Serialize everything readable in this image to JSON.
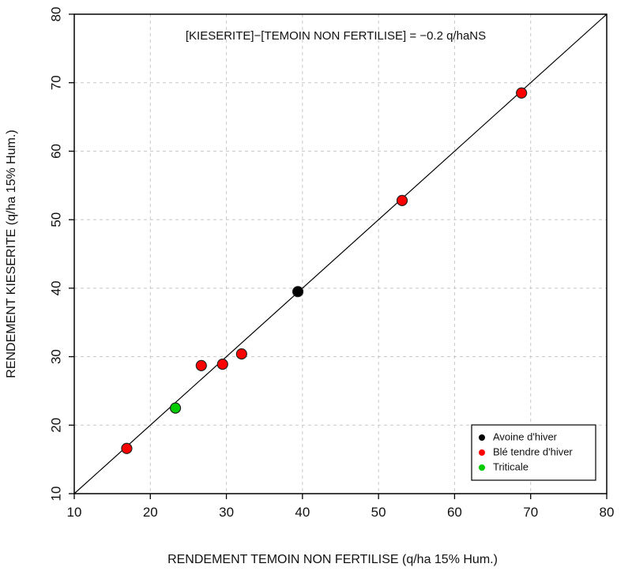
{
  "chart_data": {
    "type": "scatter",
    "title": "",
    "xlabel": "RENDEMENT TEMOIN NON FERTILISE (q/ha 15% Hum.)",
    "ylabel": "RENDEMENT KIESERITE (q/ha 15% Hum.)",
    "annotation": "[KIESERITE]−[TEMOIN NON FERTILISE] = −0.2 q/haNS",
    "xlim": [
      10,
      80
    ],
    "ylim": [
      10,
      80
    ],
    "xticks": [
      "10",
      "20",
      "30",
      "40",
      "50",
      "60",
      "70",
      "80"
    ],
    "yticks": [
      "10",
      "20",
      "30",
      "40",
      "50",
      "60",
      "70",
      "80"
    ],
    "grid": true,
    "reference_line": "y = x",
    "legend_position": "bottom-right",
    "series": [
      {
        "name": "Avoine d'hiver",
        "color": "#000000",
        "points": [
          {
            "x": 39.4,
            "y": 39.5
          }
        ]
      },
      {
        "name": "Blé tendre d'hiver",
        "color": "#ff0000",
        "points": [
          {
            "x": 16.9,
            "y": 16.6
          },
          {
            "x": 26.7,
            "y": 28.7
          },
          {
            "x": 29.5,
            "y": 28.9
          },
          {
            "x": 32.0,
            "y": 30.4
          },
          {
            "x": 53.1,
            "y": 52.8
          },
          {
            "x": 68.8,
            "y": 68.5
          }
        ]
      },
      {
        "name": "Triticale",
        "color": "#00cc00",
        "points": [
          {
            "x": 23.3,
            "y": 22.5
          }
        ]
      }
    ]
  }
}
